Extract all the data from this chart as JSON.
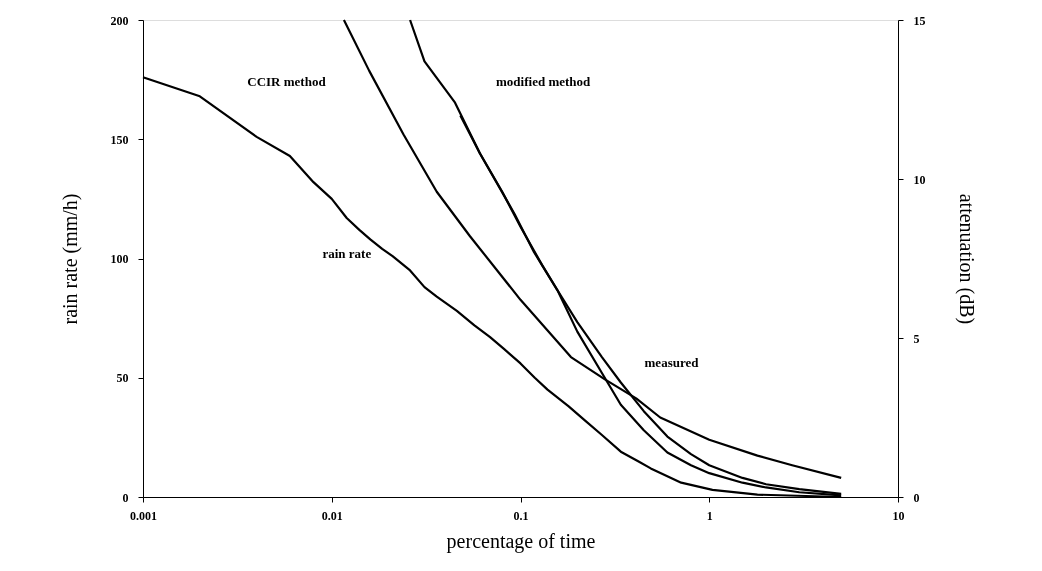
{
  "chart_data": {
    "type": "line",
    "xlabel": "percentage of time",
    "ylabel": "rain rate (mm/h)",
    "y2label": "attenuation (dB)",
    "log": "x",
    "grid": false,
    "xlim": [
      0.001,
      10
    ],
    "xticks": [
      0.001,
      0.01,
      0.1,
      1,
      10
    ],
    "ylim": [
      0,
      200
    ],
    "yticks": [
      0,
      50,
      100,
      150,
      200
    ],
    "y2lim": [
      0,
      15
    ],
    "y2ticks": [
      0,
      5,
      10,
      15
    ],
    "series": [
      {
        "axis": "y",
        "marker": "none",
        "color": "#000000",
        "x": [
          0.001,
          0.002,
          0.004,
          0.006,
          0.008,
          0.01,
          0.012,
          0.014,
          0.016,
          0.0185,
          0.021,
          0.026,
          0.031,
          0.036,
          0.046,
          0.057,
          0.069,
          0.082,
          0.1,
          0.119,
          0.139,
          0.18,
          0.22,
          0.27,
          0.34,
          0.42,
          0.49,
          0.71,
          1.04,
          1.8,
          5
        ],
        "values": [
          176,
          168,
          151,
          143,
          132,
          125,
          117,
          112,
          108,
          104,
          101,
          95,
          88,
          84,
          78,
          72,
          67,
          62,
          56,
          50,
          45,
          38,
          32,
          26,
          19,
          15,
          12,
          6,
          3,
          1,
          0
        ]
      },
      {
        "axis": "y2",
        "marker": "none",
        "color": "#000000",
        "x": [
          0.0116,
          0.0158,
          0.024,
          0.036,
          0.054,
          0.1,
          0.185,
          0.28,
          0.41,
          0.55,
          1,
          1.8,
          2.75,
          5
        ],
        "values": [
          15,
          13.4,
          11.4,
          9.6,
          8.2,
          6.2,
          4.4,
          3.7,
          3.1,
          2.5,
          1.8,
          1.3,
          1.0,
          0.6
        ]
      },
      {
        "axis": "y2",
        "marker": "none",
        "color": "#000000",
        "x": [
          0.026,
          0.031,
          0.045,
          0.061,
          0.093,
          0.118,
          0.157,
          0.2,
          0.27,
          0.34,
          0.45,
          0.6,
          0.8,
          1,
          1.5,
          2,
          3,
          5
        ],
        "values": [
          15,
          13.7,
          12.4,
          10.8,
          8.9,
          7.7,
          6.5,
          5.2,
          3.9,
          2.9,
          2.1,
          1.4,
          1.0,
          0.75,
          0.45,
          0.3,
          0.15,
          0.05
        ]
      },
      {
        "axis": "y2",
        "marker": "none",
        "color": "#000000",
        "x": [
          0.048,
          0.061,
          0.08,
          0.1,
          0.13,
          0.157,
          0.2,
          0.27,
          0.34,
          0.45,
          0.6,
          0.8,
          1,
          1.5,
          2,
          3,
          5
        ],
        "values": [
          12.0,
          10.8,
          9.6,
          8.5,
          7.3,
          6.5,
          5.5,
          4.4,
          3.6,
          2.7,
          1.9,
          1.35,
          1.0,
          0.6,
          0.4,
          0.25,
          0.1
        ]
      }
    ],
    "annotations": [
      "CCIR method",
      "modified method",
      "rain rate",
      "measured"
    ]
  }
}
